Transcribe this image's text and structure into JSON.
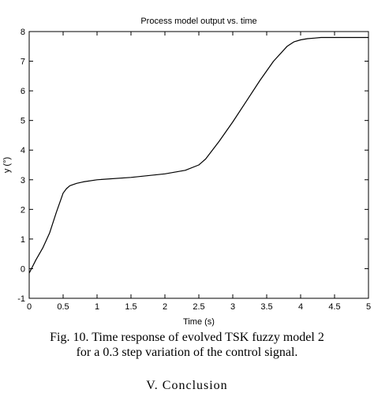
{
  "chart_data": {
    "type": "line",
    "title": "Process model output vs. time",
    "xlabel": "Time (s)",
    "ylabel": "y (°)",
    "xlim": [
      0,
      5
    ],
    "ylim": [
      -1,
      8
    ],
    "xticks": [
      0,
      0.5,
      1,
      1.5,
      2,
      2.5,
      3,
      3.5,
      4,
      4.5,
      5
    ],
    "xtick_labels": [
      "0",
      "0.5",
      "1",
      "1.5",
      "2",
      "2.5",
      "3",
      "3.5",
      "4",
      "4.5",
      "5"
    ],
    "yticks": [
      -1,
      0,
      1,
      2,
      3,
      4,
      5,
      6,
      7,
      8
    ],
    "ytick_labels": [
      "-1",
      "0",
      "1",
      "2",
      "3",
      "4",
      "5",
      "6",
      "7",
      "8"
    ],
    "grid": false,
    "series": [
      {
        "color": "#000000",
        "x": [
          0,
          0.1,
          0.2,
          0.3,
          0.4,
          0.5,
          0.55,
          0.6,
          0.7,
          0.8,
          1.0,
          1.5,
          2.0,
          2.3,
          2.5,
          2.6,
          2.8,
          3.0,
          3.2,
          3.4,
          3.6,
          3.8,
          3.9,
          4.0,
          4.1,
          4.2,
          4.3,
          4.5,
          5.0
        ],
        "y": [
          -0.15,
          0.3,
          0.7,
          1.2,
          1.9,
          2.55,
          2.7,
          2.8,
          2.88,
          2.93,
          3.0,
          3.08,
          3.2,
          3.32,
          3.5,
          3.7,
          4.3,
          4.95,
          5.65,
          6.35,
          7.0,
          7.5,
          7.65,
          7.72,
          7.76,
          7.78,
          7.8,
          7.8,
          7.8
        ]
      }
    ]
  },
  "caption": {
    "line1": "Fig. 10.  Time response of evolved TSK fuzzy model 2",
    "line2": "for a 0.3 step variation of the control signal."
  },
  "section_heading": "V.  Conclusion"
}
